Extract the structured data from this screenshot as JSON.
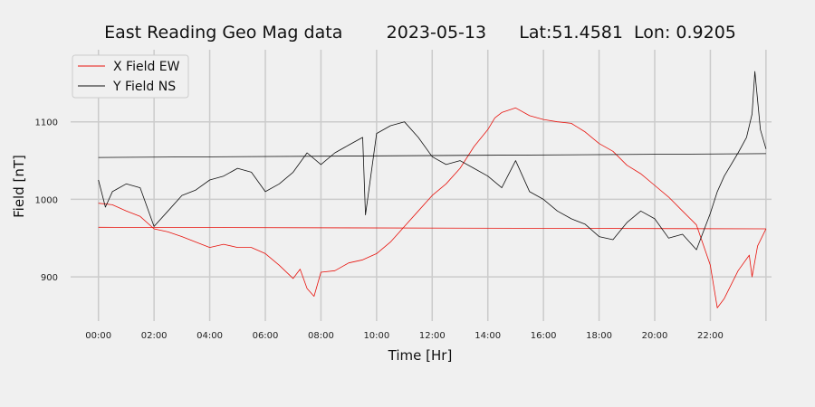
{
  "chart_data": {
    "type": "line",
    "title": "East Reading Geo Mag data        2023-05-13      Lat:51.4581  Lon: 0.9205",
    "xlabel": "Time  [Hr]",
    "ylabel": "Field  [nT]",
    "xlim": [
      -1.0,
      24.2
    ],
    "ylim": [
      843,
      1193
    ],
    "x_ticks": [
      0,
      2,
      4,
      6,
      8,
      10,
      12,
      14,
      16,
      18,
      20,
      22
    ],
    "x_tick_labels": [
      "00:00",
      "02:00",
      "04:00",
      "06:00",
      "08:00",
      "10:00",
      "12:00",
      "14:00",
      "16:00",
      "18:00",
      "20:00",
      "22:00"
    ],
    "y_ticks": [
      900,
      1000,
      1100
    ],
    "y_tick_labels": [
      "900",
      "1000",
      "1100"
    ],
    "grid": true,
    "legend_position": "top-left",
    "series": [
      {
        "name": "X Field EW",
        "color": "#e8120c",
        "x": [
          0.0,
          0.5,
          1.0,
          1.5,
          2.0,
          2.5,
          3.0,
          3.5,
          4.0,
          4.5,
          5.0,
          5.5,
          6.0,
          6.5,
          7.0,
          7.25,
          7.5,
          7.75,
          8.0,
          8.5,
          9.0,
          9.5,
          10.0,
          10.5,
          11.0,
          11.5,
          12.0,
          12.5,
          13.0,
          13.5,
          14.0,
          14.25,
          14.5,
          15.0,
          15.5,
          16.0,
          16.5,
          17.0,
          17.5,
          18.0,
          18.5,
          19.0,
          19.5,
          20.0,
          20.5,
          21.0,
          21.5,
          22.0,
          22.25,
          22.5,
          23.0,
          23.4,
          23.5,
          23.7,
          24.0
        ],
        "y": [
          995,
          993,
          985,
          978,
          962,
          958,
          952,
          945,
          938,
          942,
          938,
          938,
          930,
          915,
          898,
          910,
          885,
          875,
          906,
          908,
          918,
          922,
          930,
          945,
          965,
          985,
          1005,
          1020,
          1040,
          1068,
          1090,
          1105,
          1112,
          1118,
          1108,
          1103,
          1100,
          1098,
          1087,
          1072,
          1062,
          1044,
          1033,
          1018,
          1003,
          985,
          967,
          915,
          860,
          872,
          908,
          928,
          900,
          940,
          962
        ]
      },
      {
        "name": "",
        "color": "#e8120c",
        "x": [
          0.0,
          24.0
        ],
        "y": [
          964,
          962
        ]
      },
      {
        "name": "Y Field NS",
        "color": "#111111",
        "x": [
          0.0,
          0.25,
          0.5,
          1.0,
          1.5,
          2.0,
          2.5,
          3.0,
          3.5,
          4.0,
          4.5,
          5.0,
          5.5,
          6.0,
          6.5,
          7.0,
          7.5,
          8.0,
          8.5,
          9.0,
          9.5,
          9.6,
          10.0,
          10.5,
          11.0,
          11.5,
          12.0,
          12.5,
          13.0,
          13.5,
          14.0,
          14.5,
          15.0,
          15.5,
          16.0,
          16.5,
          17.0,
          17.5,
          18.0,
          18.5,
          19.0,
          19.5,
          20.0,
          20.5,
          21.0,
          21.5,
          22.0,
          22.25,
          22.5,
          23.0,
          23.3,
          23.5,
          23.6,
          23.8,
          24.0
        ],
        "y": [
          1025,
          990,
          1010,
          1020,
          1015,
          965,
          985,
          1005,
          1012,
          1025,
          1030,
          1040,
          1035,
          1010,
          1020,
          1035,
          1060,
          1045,
          1060,
          1070,
          1080,
          980,
          1085,
          1095,
          1100,
          1080,
          1055,
          1045,
          1050,
          1040,
          1030,
          1015,
          1050,
          1010,
          1000,
          985,
          975,
          968,
          952,
          948,
          970,
          985,
          975,
          950,
          955,
          935,
          982,
          1010,
          1030,
          1060,
          1080,
          1110,
          1165,
          1090,
          1065
        ]
      },
      {
        "name": "",
        "color": "#111111",
        "x": [
          0.0,
          24.0
        ],
        "y": [
          1054,
          1059
        ]
      }
    ]
  }
}
